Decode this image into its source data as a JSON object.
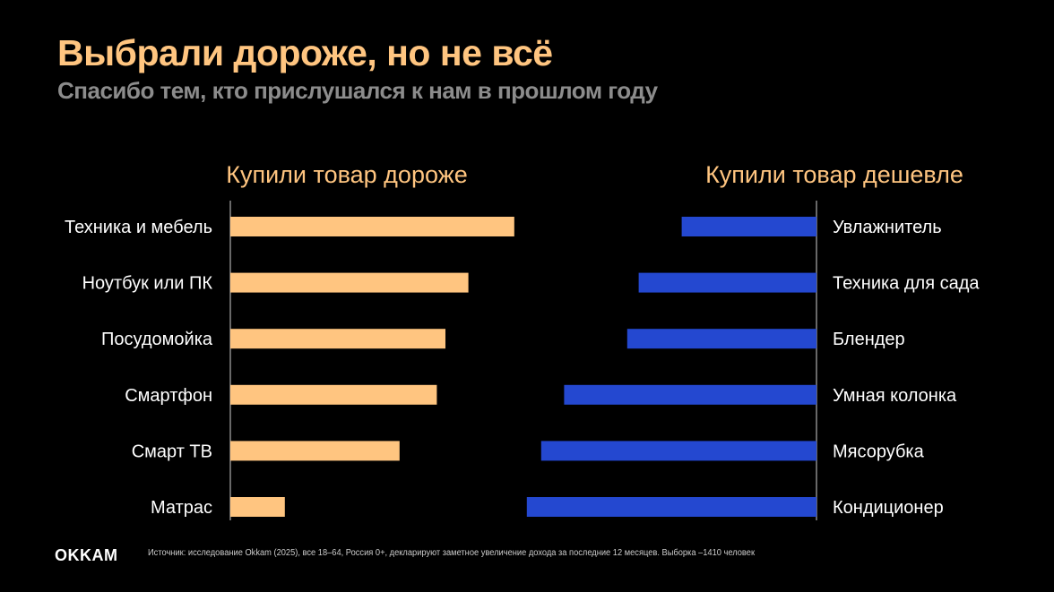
{
  "header": {
    "title": "Выбрали дороже, но не всё",
    "subtitle": "Спасибо тем, кто прислушался к нам в прошлом году"
  },
  "chart_data": [
    {
      "type": "bar",
      "orientation": "horizontal",
      "title": "Купили товар дороже",
      "categories": [
        "Техника и мебель",
        "Ноутбук или ПК",
        "Посудомойка",
        "Смартфон",
        "Смарт ТВ",
        "Матрас"
      ],
      "values": [
        99,
        83,
        75,
        72,
        59,
        19
      ],
      "unit": "relative (no axis labels shown)",
      "color": "#ffc580",
      "direction": "left-to-right"
    },
    {
      "type": "bar",
      "orientation": "horizontal",
      "title": "Купили товар дешевле",
      "categories": [
        "Увлажнитель",
        "Техника для сада",
        "Блендер",
        "Умная колонка",
        "Мясорубка",
        "Кондиционер"
      ],
      "values": [
        47,
        62,
        66,
        88,
        96,
        101
      ],
      "unit": "relative (no axis labels shown)",
      "color": "#2448d0",
      "direction": "right-to-left"
    }
  ],
  "footer": {
    "logo": "OKKAM",
    "source": "Источник: исследование Okkam (2025), все 18–64, Россия 0+,  декларируют заметное увеличение дохода за последние 12 месяцев.  Выборка –1410 человек"
  }
}
